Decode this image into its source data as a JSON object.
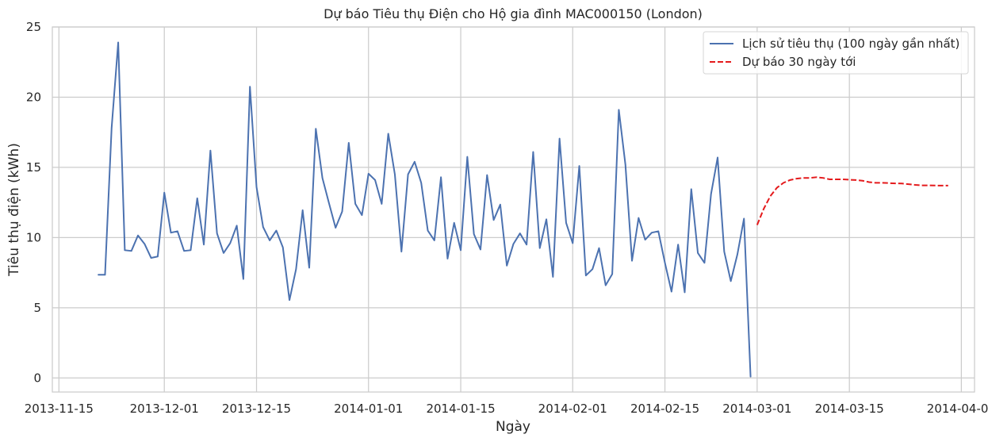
{
  "chart_data": {
    "type": "line",
    "title": "Dự báo Tiêu thụ Điện cho Hộ gia đình MAC000150 (London)",
    "xlabel": "Ngày",
    "ylabel": "Tiêu thụ điện (kWh)",
    "xlim": [
      "2013-11-14",
      "2014-04-03"
    ],
    "ylim": [
      -1,
      25
    ],
    "grid": true,
    "legend_position": "top-right",
    "x_ticks": [
      "2013-11-15",
      "2013-12-01",
      "2013-12-15",
      "2014-01-01",
      "2014-01-15",
      "2014-02-01",
      "2014-02-15",
      "2014-03-01",
      "2014-03-15",
      "2014-04-01"
    ],
    "y_ticks": [
      0,
      5,
      10,
      15,
      20,
      25
    ],
    "series": [
      {
        "name": "Lịch sử tiêu thụ (100 ngày gần nhất)",
        "color": "#4c72b0",
        "style": "solid",
        "start_date": "2013-11-21",
        "values": [
          7.35,
          7.35,
          17.8,
          23.9,
          9.1,
          9.05,
          10.15,
          9.55,
          8.55,
          8.65,
          13.2,
          10.35,
          10.45,
          9.05,
          9.1,
          12.8,
          9.5,
          16.2,
          10.3,
          8.9,
          9.6,
          10.85,
          7.05,
          20.75,
          13.6,
          10.75,
          9.8,
          10.5,
          9.3,
          5.55,
          7.75,
          11.95,
          7.85,
          17.75,
          14.25,
          12.45,
          10.7,
          11.85,
          16.75,
          12.4,
          11.6,
          14.55,
          14.1,
          12.4,
          17.4,
          14.5,
          9.0,
          14.5,
          15.4,
          13.9,
          10.5,
          9.8,
          14.3,
          8.5,
          11.05,
          9.1,
          15.75,
          10.25,
          9.15,
          14.45,
          11.25,
          12.35,
          8.0,
          9.55,
          10.3,
          9.5,
          16.1,
          9.25,
          11.3,
          7.2,
          17.05,
          11.05,
          9.6,
          15.1,
          7.3,
          7.75,
          9.25,
          6.6,
          7.4,
          19.1,
          15.2,
          8.35,
          11.4,
          9.85,
          10.35,
          10.45,
          8.2,
          6.15,
          9.5,
          6.1,
          13.45,
          8.9,
          8.2,
          13.1,
          15.7,
          9.0,
          6.9,
          8.8,
          11.35,
          0.1
        ]
      },
      {
        "name": "Dự báo 30 ngày tới",
        "color": "#e41a1c",
        "style": "dashed",
        "start_date": "2014-03-01",
        "values": [
          10.9,
          12.05,
          12.95,
          13.55,
          13.9,
          14.1,
          14.2,
          14.25,
          14.25,
          14.3,
          14.25,
          14.15,
          14.15,
          14.15,
          14.12,
          14.1,
          14.05,
          13.95,
          13.9,
          13.9,
          13.88,
          13.86,
          13.85,
          13.8,
          13.75,
          13.72,
          13.72,
          13.71,
          13.7,
          13.7
        ]
      }
    ]
  }
}
